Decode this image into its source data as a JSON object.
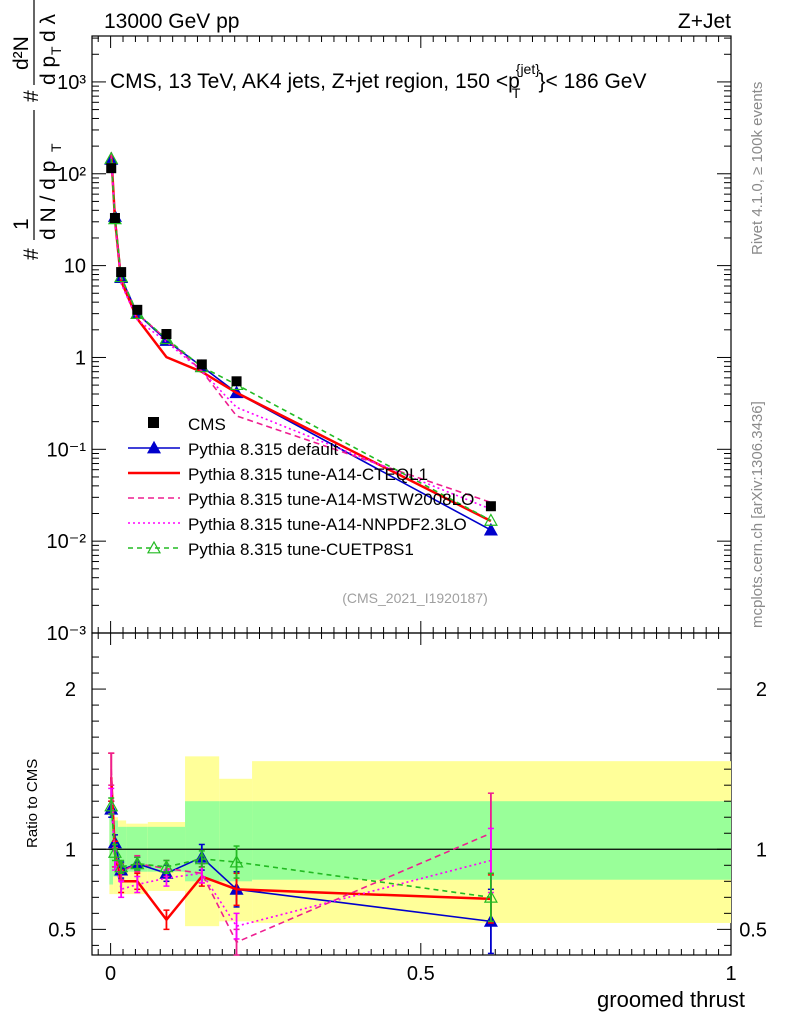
{
  "header": {
    "beam": "13000 GeV pp",
    "process": "Z+Jet",
    "rivet_label": "Rivet 4.1.0, ≥ 100k events",
    "mcplots_label": "mcplots.cern.ch [arXiv:1306.3436]",
    "analysis_id": "(CMS_2021_I1920187)"
  },
  "chart_data": {
    "type": "line",
    "title": "CMS, 13 TeV, AK4 jets, Z+jet region, 150 <p_T^{jet}< 186 GeV",
    "xlabel": "groomed thrust",
    "ylabel": "1/(dN/dp_T) d²N/(dp_T dλ)",
    "ratio_ylabel": "Ratio to CMS",
    "xlim": [
      -0.03,
      1.0
    ],
    "main_ylim_log10": [
      -3,
      3.5
    ],
    "ratio_ylim": [
      0.34,
      2.35
    ],
    "x_ticks": [
      {
        "v": 0,
        "label": "0"
      },
      {
        "v": 0.5,
        "label": "0.5"
      },
      {
        "v": 1,
        "label": "1"
      }
    ],
    "y_ticks": [
      {
        "exp": -3,
        "label": "10⁻³"
      },
      {
        "exp": -2,
        "label": "10⁻²"
      },
      {
        "exp": -1,
        "label": "10⁻¹"
      },
      {
        "exp": 0,
        "label": "1"
      },
      {
        "exp": 1,
        "label": "10"
      },
      {
        "exp": 2,
        "label": "10²"
      },
      {
        "exp": 3,
        "label": "10³"
      }
    ],
    "ratio_ticks": [
      {
        "v": 0.5,
        "label": "0.5"
      },
      {
        "v": 1,
        "label": "1"
      },
      {
        "v": 2,
        "label": "2"
      }
    ],
    "bins": [
      {
        "lo": -0.002,
        "hi": 0.004
      },
      {
        "lo": 0.004,
        "hi": 0.012
      },
      {
        "lo": 0.012,
        "hi": 0.025
      },
      {
        "lo": 0.025,
        "hi": 0.06
      },
      {
        "lo": 0.06,
        "hi": 0.12
      },
      {
        "lo": 0.12,
        "hi": 0.175
      },
      {
        "lo": 0.175,
        "hi": 0.228
      },
      {
        "lo": 0.228,
        "hi": 1.0
      }
    ],
    "band_inner": [
      [
        0.78,
        1.24
      ],
      [
        0.83,
        1.18
      ],
      [
        0.86,
        1.14
      ],
      [
        0.86,
        1.14
      ],
      [
        0.86,
        1.14
      ],
      [
        0.8,
        1.3
      ],
      [
        0.8,
        1.3
      ],
      [
        0.81,
        1.3
      ]
    ],
    "band_outer": [
      [
        0.72,
        1.32
      ],
      [
        0.72,
        1.2
      ],
      [
        0.72,
        1.18
      ],
      [
        0.72,
        1.16
      ],
      [
        0.74,
        1.17
      ],
      [
        0.52,
        1.58
      ],
      [
        0.55,
        1.44
      ],
      [
        0.54,
        1.55
      ]
    ],
    "data": {
      "name": "CMS",
      "x": [
        0.001,
        0.007,
        0.017,
        0.043,
        0.09,
        0.147,
        0.203,
        0.613
      ],
      "y": [
        115,
        33,
        8.5,
        3.3,
        1.8,
        0.84,
        0.55,
        0.024
      ]
    },
    "series": [
      {
        "name": "Pythia 8.315 default",
        "color": "#0000cc",
        "dash": "",
        "marker": "triangle-filled",
        "ratio": [
          1.25,
          1.04,
          0.87,
          0.91,
          0.85,
          0.95,
          0.75,
          0.55
        ],
        "ratio_err": [
          0.05,
          0.05,
          0.05,
          0.04,
          0.05,
          0.08,
          0.11,
          0.2
        ]
      },
      {
        "name": "Pythia 8.315 tune-A14-CTEQL1",
        "color": "#ff0000",
        "dash": "",
        "marker": "none",
        "ratio": [
          1.45,
          0.97,
          0.8,
          0.8,
          0.56,
          0.83,
          0.75,
          0.69
        ],
        "ratio_err": [
          0.15,
          0.08,
          0.07,
          0.05,
          0.06,
          0.06,
          0.1,
          0.15
        ]
      },
      {
        "name": "Pythia 8.315 tune-A14-MSTW2008LO",
        "color": "#ee1e90",
        "dash": "6,4",
        "marker": "none",
        "ratio": [
          1.5,
          0.95,
          0.86,
          0.91,
          0.88,
          0.85,
          0.42,
          1.1
        ],
        "ratio_err": [
          0.1,
          0.06,
          0.05,
          0.05,
          0.05,
          0.06,
          0.08,
          0.25
        ]
      },
      {
        "name": "Pythia 8.315 tune-A14-NNPDF2.3LO",
        "color": "#ff00ff",
        "dash": "2,3",
        "marker": "none",
        "ratio": [
          1.3,
          0.93,
          0.75,
          0.78,
          0.82,
          0.85,
          0.52,
          0.93
        ],
        "ratio_err": [
          0.08,
          0.06,
          0.05,
          0.05,
          0.05,
          0.06,
          0.08,
          0.2
        ]
      },
      {
        "name": "Pythia 8.315 tune-CUETP8S1",
        "color": "#22bb22",
        "dash": "5,4",
        "marker": "triangle-open",
        "ratio": [
          1.27,
          0.98,
          0.89,
          0.91,
          0.89,
          0.94,
          0.92,
          0.7
        ],
        "ratio_err": [
          0.05,
          0.05,
          0.04,
          0.04,
          0.04,
          0.05,
          0.1,
          0.15
        ]
      }
    ]
  }
}
